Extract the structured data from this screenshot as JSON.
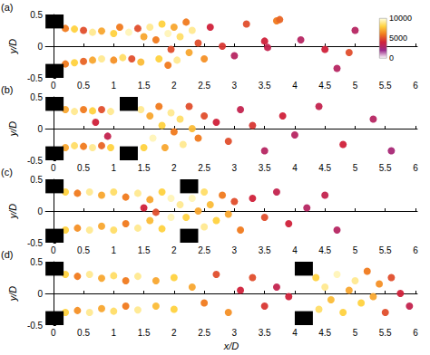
{
  "chart_data": [
    {
      "type": "scatter",
      "title": "(a)",
      "ylabel": "y/D",
      "xlim": [
        -0.13,
        6.03
      ],
      "ylim": [
        -0.5,
        0.5
      ],
      "xticks": [
        0,
        0.5,
        1,
        1.5,
        2,
        2.5,
        3,
        3.5,
        4,
        4.5,
        5,
        5.5,
        6
      ],
      "yticks": [
        -0.5,
        0,
        0.5
      ],
      "plates": [
        [
          -0.13,
          0.17,
          0.28,
          0.5
        ],
        [
          -0.13,
          0.17,
          -0.5,
          -0.28
        ]
      ],
      "colorbar": {
        "range": [
          0,
          10000
        ],
        "ticks": [
          0,
          5000,
          10000
        ]
      },
      "cells": [
        [
          0.2,
          0.28,
          6000
        ],
        [
          0.35,
          0.27,
          8000
        ],
        [
          0.5,
          0.25,
          5000
        ],
        [
          0.65,
          0.22,
          9000
        ],
        [
          0.8,
          0.24,
          7000
        ],
        [
          1.0,
          0.2,
          8000
        ],
        [
          1.1,
          0.3,
          6000
        ],
        [
          1.25,
          0.22,
          9500
        ],
        [
          1.4,
          0.28,
          5000
        ],
        [
          1.5,
          0.15,
          7000
        ],
        [
          0.2,
          -0.28,
          6000
        ],
        [
          0.35,
          -0.26,
          8000
        ],
        [
          0.5,
          -0.24,
          5500
        ],
        [
          0.65,
          -0.22,
          7000
        ],
        [
          0.8,
          -0.2,
          9000
        ],
        [
          1.0,
          -0.22,
          6500
        ],
        [
          1.15,
          -0.18,
          8500
        ],
        [
          1.3,
          -0.2,
          5000
        ],
        [
          1.45,
          -0.25,
          7500
        ],
        [
          1.6,
          0.3,
          9000
        ],
        [
          1.7,
          0.1,
          6000
        ],
        [
          1.8,
          0.35,
          8000
        ],
        [
          1.9,
          0.2,
          9500
        ],
        [
          1.95,
          -0.05,
          5000
        ],
        [
          2.0,
          0.3,
          7000
        ],
        [
          2.1,
          0.15,
          8500
        ],
        [
          2.2,
          0.38,
          6000
        ],
        [
          2.3,
          0.25,
          9000
        ],
        [
          2.25,
          -0.1,
          7000
        ],
        [
          1.75,
          -0.2,
          8000
        ],
        [
          1.9,
          -0.3,
          6000
        ],
        [
          2.05,
          -0.22,
          9000
        ],
        [
          2.4,
          0.05,
          5000
        ],
        [
          2.5,
          -0.2,
          6500
        ],
        [
          2.6,
          0.3,
          4000
        ],
        [
          2.8,
          0.0,
          4500
        ],
        [
          3.0,
          -0.15,
          3000
        ],
        [
          3.2,
          0.35,
          5000
        ],
        [
          3.5,
          0.08,
          4000
        ],
        [
          3.55,
          -0.02,
          3500
        ],
        [
          3.7,
          0.4,
          6000
        ],
        [
          3.75,
          0.42,
          5500
        ],
        [
          4.1,
          0.1,
          3000
        ],
        [
          4.5,
          -0.05,
          4000
        ],
        [
          4.9,
          -0.1,
          5000
        ],
        [
          5.0,
          0.25,
          3000
        ],
        [
          4.7,
          -0.35,
          3000
        ]
      ]
    },
    {
      "type": "scatter",
      "title": "(b)",
      "ylabel": "y/D",
      "xlim": [
        -0.13,
        6.03
      ],
      "ylim": [
        -0.5,
        0.5
      ],
      "xticks": [
        0,
        0.5,
        1,
        1.5,
        2,
        2.5,
        3,
        3.5,
        4,
        4.5,
        5,
        5.5,
        6
      ],
      "yticks": [
        -0.5,
        0,
        0.5
      ],
      "plates": [
        [
          -0.13,
          0.17,
          0.28,
          0.5
        ],
        [
          -0.13,
          0.17,
          -0.5,
          -0.28
        ],
        [
          1.1,
          1.4,
          0.28,
          0.5
        ],
        [
          1.1,
          1.4,
          -0.5,
          -0.28
        ]
      ],
      "cells": [
        [
          0.2,
          0.3,
          7000
        ],
        [
          0.35,
          0.27,
          9000
        ],
        [
          0.5,
          0.3,
          6000
        ],
        [
          0.65,
          0.28,
          8000
        ],
        [
          0.8,
          0.3,
          5000
        ],
        [
          0.95,
          0.27,
          9000
        ],
        [
          0.2,
          -0.3,
          7000
        ],
        [
          0.35,
          -0.27,
          8500
        ],
        [
          0.5,
          -0.28,
          6000
        ],
        [
          0.65,
          -0.3,
          9000
        ],
        [
          0.8,
          -0.27,
          5500
        ],
        [
          0.95,
          -0.3,
          8000
        ],
        [
          0.7,
          0.1,
          4000
        ],
        [
          0.9,
          -0.12,
          3500
        ],
        [
          1.45,
          0.3,
          9000
        ],
        [
          1.5,
          -0.3,
          8000
        ],
        [
          1.6,
          0.2,
          7000
        ],
        [
          1.65,
          -0.15,
          9500
        ],
        [
          1.75,
          0.35,
          6000
        ],
        [
          1.8,
          0.05,
          8000
        ],
        [
          1.85,
          -0.3,
          7000
        ],
        [
          1.95,
          0.25,
          9000
        ],
        [
          2.0,
          -0.05,
          6000
        ],
        [
          2.1,
          0.15,
          8500
        ],
        [
          2.15,
          -0.25,
          9000
        ],
        [
          2.25,
          0.35,
          5000
        ],
        [
          2.3,
          0.0,
          7500
        ],
        [
          2.4,
          -0.15,
          6000
        ],
        [
          2.5,
          0.2,
          5000
        ],
        [
          2.7,
          0.1,
          4000
        ],
        [
          2.9,
          -0.2,
          5000
        ],
        [
          3.1,
          0.3,
          3500
        ],
        [
          3.3,
          0.05,
          4500
        ],
        [
          3.5,
          -0.35,
          3000
        ],
        [
          3.8,
          0.2,
          4000
        ],
        [
          4.0,
          -0.1,
          3000
        ],
        [
          4.4,
          0.35,
          3500
        ],
        [
          4.8,
          -0.25,
          4000
        ],
        [
          5.3,
          0.15,
          3000
        ],
        [
          5.6,
          -0.35,
          2500
        ]
      ]
    },
    {
      "type": "scatter",
      "title": "(c)",
      "ylabel": "y/D",
      "xlim": [
        -0.13,
        6.03
      ],
      "ylim": [
        -0.5,
        0.5
      ],
      "xticks": [
        0,
        0.5,
        1,
        1.5,
        2,
        2.5,
        3,
        3.5,
        4,
        4.5,
        5,
        5.5,
        6
      ],
      "yticks": [
        -0.5,
        0,
        0.5
      ],
      "plates": [
        [
          -0.13,
          0.17,
          0.28,
          0.5
        ],
        [
          -0.13,
          0.17,
          -0.5,
          -0.28
        ],
        [
          2.1,
          2.4,
          0.28,
          0.5
        ],
        [
          2.1,
          2.4,
          -0.5,
          -0.28
        ]
      ],
      "cells": [
        [
          0.2,
          0.3,
          8000
        ],
        [
          0.4,
          0.28,
          6000
        ],
        [
          0.6,
          0.3,
          9000
        ],
        [
          0.8,
          0.25,
          7000
        ],
        [
          1.0,
          0.3,
          8500
        ],
        [
          1.2,
          0.22,
          6000
        ],
        [
          1.4,
          0.28,
          9000
        ],
        [
          1.6,
          0.18,
          7000
        ],
        [
          1.8,
          0.3,
          8000
        ],
        [
          1.95,
          0.2,
          9500
        ],
        [
          0.2,
          -0.3,
          8000
        ],
        [
          0.4,
          -0.27,
          6500
        ],
        [
          0.6,
          -0.3,
          9000
        ],
        [
          0.8,
          -0.24,
          7000
        ],
        [
          1.0,
          -0.3,
          8500
        ],
        [
          1.2,
          -0.2,
          6000
        ],
        [
          1.4,
          -0.27,
          9000
        ],
        [
          1.6,
          -0.15,
          7500
        ],
        [
          1.8,
          -0.28,
          8000
        ],
        [
          1.95,
          -0.1,
          9500
        ],
        [
          1.5,
          0.05,
          4000
        ],
        [
          1.7,
          -0.02,
          5000
        ],
        [
          2.1,
          0.1,
          9000
        ],
        [
          2.2,
          -0.1,
          8000
        ],
        [
          2.3,
          0.2,
          9500
        ],
        [
          2.4,
          0.0,
          7000
        ],
        [
          2.5,
          0.3,
          8500
        ],
        [
          2.5,
          -0.25,
          9000
        ],
        [
          2.6,
          0.1,
          7500
        ],
        [
          2.7,
          -0.15,
          8000
        ],
        [
          2.8,
          0.25,
          6000
        ],
        [
          2.9,
          -0.05,
          7000
        ],
        [
          3.0,
          0.15,
          5000
        ],
        [
          3.1,
          -0.3,
          6000
        ],
        [
          3.3,
          0.2,
          4000
        ],
        [
          3.5,
          -0.1,
          5000
        ],
        [
          3.7,
          0.3,
          3500
        ],
        [
          3.9,
          -0.2,
          4000
        ],
        [
          4.2,
          0.05,
          3000
        ],
        [
          4.5,
          0.25,
          3500
        ],
        [
          4.7,
          -0.3,
          3000
        ]
      ]
    },
    {
      "type": "scatter",
      "title": "(d)",
      "xlabel": "x/D",
      "ylabel": "y/D",
      "xlim": [
        -0.13,
        6.03
      ],
      "ylim": [
        -0.5,
        0.5
      ],
      "xticks": [
        0,
        0.5,
        1,
        1.5,
        2,
        2.5,
        3,
        3.5,
        4,
        4.5,
        5,
        5.5,
        6
      ],
      "yticks": [
        -0.5,
        0,
        0.5
      ],
      "plates": [
        [
          -0.13,
          0.17,
          0.28,
          0.5
        ],
        [
          -0.13,
          0.17,
          -0.5,
          -0.28
        ],
        [
          4.0,
          4.3,
          0.28,
          0.5
        ],
        [
          4.0,
          4.3,
          -0.5,
          -0.28
        ]
      ],
      "cells": [
        [
          0.2,
          0.3,
          8000
        ],
        [
          0.4,
          0.27,
          6000
        ],
        [
          0.6,
          0.3,
          9000
        ],
        [
          0.8,
          0.24,
          7000
        ],
        [
          1.0,
          0.28,
          8500
        ],
        [
          1.2,
          0.2,
          6000
        ],
        [
          1.4,
          0.27,
          9000
        ],
        [
          1.7,
          0.2,
          7000
        ],
        [
          2.0,
          0.25,
          8000
        ],
        [
          0.2,
          -0.3,
          8000
        ],
        [
          0.4,
          -0.27,
          6500
        ],
        [
          0.6,
          -0.3,
          9000
        ],
        [
          0.8,
          -0.24,
          7000
        ],
        [
          1.0,
          -0.28,
          8500
        ],
        [
          1.2,
          -0.2,
          6000
        ],
        [
          1.4,
          -0.26,
          9000
        ],
        [
          1.7,
          -0.2,
          7500
        ],
        [
          2.0,
          -0.25,
          8000
        ],
        [
          2.3,
          0.1,
          7000
        ],
        [
          2.5,
          -0.15,
          6000
        ],
        [
          2.7,
          0.3,
          5000
        ],
        [
          2.9,
          -0.3,
          6500
        ],
        [
          3.1,
          0.05,
          4000
        ],
        [
          3.3,
          0.25,
          5000
        ],
        [
          3.5,
          -0.2,
          4500
        ],
        [
          3.7,
          0.1,
          3500
        ],
        [
          3.9,
          -0.05,
          4000
        ],
        [
          4.35,
          0.25,
          8000
        ],
        [
          4.4,
          -0.25,
          8500
        ],
        [
          4.5,
          0.1,
          9000
        ],
        [
          4.6,
          -0.1,
          7500
        ],
        [
          4.7,
          0.3,
          9500
        ],
        [
          4.8,
          -0.3,
          8000
        ],
        [
          4.9,
          0.05,
          7000
        ],
        [
          5.0,
          0.2,
          9000
        ],
        [
          5.1,
          -0.15,
          8000
        ],
        [
          5.2,
          0.35,
          6000
        ],
        [
          5.3,
          -0.05,
          7000
        ],
        [
          5.4,
          0.15,
          6500
        ],
        [
          5.5,
          -0.3,
          5000
        ],
        [
          5.6,
          0.25,
          5000
        ],
        [
          5.75,
          0.0,
          4000
        ],
        [
          5.9,
          -0.2,
          3500
        ]
      ]
    }
  ]
}
